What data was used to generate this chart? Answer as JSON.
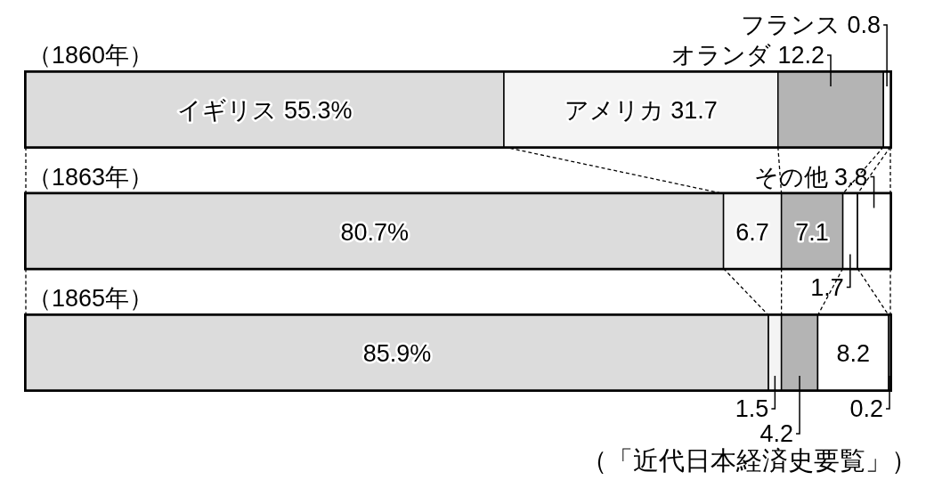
{
  "chart_data": {
    "type": "bar",
    "orientation": "horizontal",
    "stacked": true,
    "categories": [
      "（1860年）",
      "（1863年）",
      "（1865年）"
    ],
    "xlim": [
      0,
      100
    ],
    "series": [
      {
        "name": "イギリス",
        "color": "#dcdcdc",
        "values": [
          55.3,
          80.7,
          85.9
        ],
        "value_labels": [
          "55.3%",
          "80.7%",
          "85.9%"
        ]
      },
      {
        "name": "アメリカ",
        "color": "#f4f4f4",
        "values": [
          31.7,
          6.7,
          1.5
        ],
        "value_labels": [
          "31.7",
          "6.7",
          "1.5"
        ]
      },
      {
        "name": "オランダ",
        "color": "#b4b4b4",
        "values": [
          12.2,
          7.1,
          4.2
        ],
        "value_labels": [
          "12.2",
          "7.1",
          "4.2"
        ]
      },
      {
        "name": "フランス",
        "color": "#ffffff",
        "values": [
          0.8,
          1.7,
          8.2
        ],
        "value_labels": [
          "0.8",
          "1.7",
          "8.2"
        ]
      },
      {
        "name": "その他",
        "color": "#ffffff",
        "values": [
          null,
          3.8,
          0.2
        ],
        "value_labels": [
          null,
          "3.8",
          "0.2"
        ]
      }
    ],
    "annotations": [
      "（「近代日本経済史要覧」）"
    ]
  }
}
